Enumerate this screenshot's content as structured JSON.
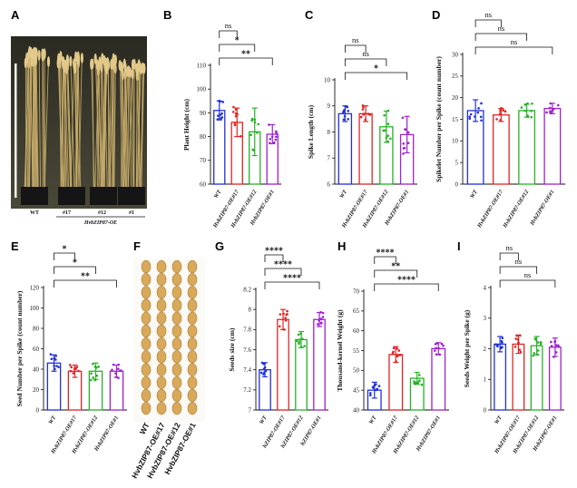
{
  "figure": {
    "panel_labels": [
      "A",
      "B",
      "C",
      "D",
      "E",
      "F",
      "G",
      "H",
      "I"
    ],
    "series_colors": [
      "#2030d8",
      "#e02424",
      "#26b226",
      "#a020d0"
    ],
    "panel_a": {
      "genotype_labels": [
        "WT",
        "#17",
        "#12",
        "#1"
      ],
      "line_name": "HvbZIP87-OE"
    },
    "panel_f": {
      "seed_labels": [
        "WT",
        "HvbZIP87-OE#17",
        "HvbZIP87-OE#12",
        "HvbZIP87-OE#1"
      ]
    }
  },
  "chart_data": [
    {
      "panel": "B",
      "type": "bar",
      "categories": [
        "WT",
        "HvbZIP87-OE#17",
        "HvbZIP87-OE#12",
        "HvbZIP87-OE#1"
      ],
      "values": [
        91,
        86,
        82,
        81
      ],
      "errors": [
        4,
        6,
        10,
        4
      ],
      "ylabel": "Plant Height (cm)",
      "ylim": [
        60,
        110
      ],
      "yticks": [
        60,
        70,
        80,
        90,
        100,
        110
      ],
      "comparisons": [
        {
          "from": 0,
          "to": 1,
          "label": "ns"
        },
        {
          "from": 0,
          "to": 2,
          "label": "*"
        },
        {
          "from": 0,
          "to": 3,
          "label": "**"
        }
      ]
    },
    {
      "panel": "C",
      "type": "bar",
      "categories": [
        "WT",
        "HvbZIP87-OE#17",
        "HvbZIP87-OE#12",
        "HvbZIP87-OE#1"
      ],
      "values": [
        8.7,
        8.7,
        8.2,
        7.9
      ],
      "errors": [
        0.3,
        0.3,
        0.6,
        0.7
      ],
      "ylabel": "Spike Length (cm)",
      "ylim": [
        6,
        10
      ],
      "yticks": [
        6,
        7,
        8,
        9,
        10
      ],
      "comparisons": [
        {
          "from": 0,
          "to": 1,
          "label": "ns"
        },
        {
          "from": 0,
          "to": 2,
          "label": "ns"
        },
        {
          "from": 0,
          "to": 3,
          "label": "*"
        }
      ]
    },
    {
      "panel": "D",
      "type": "bar",
      "categories": [
        "WT",
        "HvbZIP87-OE#17",
        "HvbZIP87-OE#12",
        "HvbZIP87-OE#1"
      ],
      "values": [
        17,
        16,
        17,
        17.5
      ],
      "errors": [
        2.5,
        1.5,
        1.5,
        1.2
      ],
      "ylabel": "Spikelet Number per Spike (count number)",
      "ylim": [
        0,
        30
      ],
      "yticks": [
        0,
        5,
        10,
        15,
        20,
        25,
        30
      ],
      "comparisons": [
        {
          "from": 0,
          "to": 1,
          "label": "ns"
        },
        {
          "from": 0,
          "to": 2,
          "label": "ns"
        },
        {
          "from": 0,
          "to": 3,
          "label": "ns"
        }
      ]
    },
    {
      "panel": "E",
      "type": "bar",
      "categories": [
        "WT",
        "HvbZIP87-OE#17",
        "HvbZIP87-OE#12",
        "HvbZIP87-OE#1"
      ],
      "values": [
        46,
        38,
        38,
        38
      ],
      "errors": [
        8,
        6,
        8,
        6
      ],
      "ylabel": "Seed Number per Spike (count number)",
      "ylim": [
        0,
        120
      ],
      "yticks": [
        0,
        20,
        40,
        60,
        80,
        100,
        120
      ],
      "comparisons": [
        {
          "from": 0,
          "to": 1,
          "label": "*"
        },
        {
          "from": 0,
          "to": 2,
          "label": "*"
        },
        {
          "from": 0,
          "to": 3,
          "label": "**"
        }
      ]
    },
    {
      "panel": "G",
      "type": "bar",
      "categories": [
        "WT",
        "hZIP87-OE#17",
        "hZIP87-OE#12",
        "hZIP87-OE#1"
      ],
      "values": [
        7.4,
        7.9,
        7.7,
        7.9
      ],
      "errors": [
        0.07,
        0.1,
        0.08,
        0.07
      ],
      "ylabel": "Seeds size (cm)",
      "ylim": [
        7.0,
        8.2
      ],
      "yticks": [
        7.0,
        7.2,
        7.4,
        7.6,
        7.8,
        8.0,
        8.2
      ],
      "comparisons": [
        {
          "from": 0,
          "to": 1,
          "label": "****"
        },
        {
          "from": 0,
          "to": 2,
          "label": "****"
        },
        {
          "from": 0,
          "to": 3,
          "label": "****"
        }
      ]
    },
    {
      "panel": "H",
      "type": "bar",
      "categories": [
        "WT",
        "HvbZIP87-OE#17",
        "HvbZIP87-OE#12",
        "HvbZIP87-OE#1"
      ],
      "values": [
        45,
        54,
        48,
        55.5
      ],
      "errors": [
        2,
        2,
        1.5,
        1.5
      ],
      "ylabel": "Thousand-kernel Weight (g)",
      "ylim": [
        40,
        70
      ],
      "yticks": [
        40,
        45,
        50,
        55,
        60,
        65,
        70
      ],
      "comparisons": [
        {
          "from": 0,
          "to": 1,
          "label": "****"
        },
        {
          "from": 0,
          "to": 2,
          "label": "**"
        },
        {
          "from": 0,
          "to": 3,
          "label": "****"
        }
      ]
    },
    {
      "panel": "I",
      "type": "bar",
      "categories": [
        "WT",
        "HvbZIP87-OE#17",
        "HvbZIP87-OE#12",
        "HvbZIP87-OE#1"
      ],
      "values": [
        2.15,
        2.15,
        2.1,
        2.05
      ],
      "errors": [
        0.25,
        0.3,
        0.3,
        0.3
      ],
      "ylabel": "Seeds Weight per Spike (g)",
      "ylim": [
        0,
        4
      ],
      "yticks": [
        0,
        1,
        2,
        3,
        4
      ],
      "comparisons": [
        {
          "from": 0,
          "to": 1,
          "label": "ns"
        },
        {
          "from": 0,
          "to": 2,
          "label": "ns"
        },
        {
          "from": 0,
          "to": 3,
          "label": "ns"
        }
      ]
    }
  ]
}
